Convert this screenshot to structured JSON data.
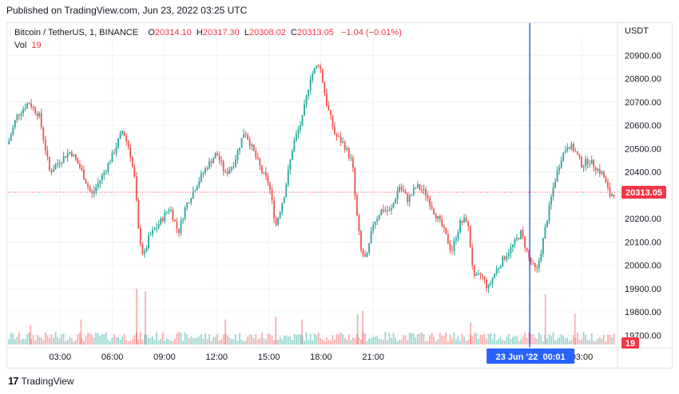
{
  "header": {
    "published": "Published on TradingView.com, Jun 23, 2022 03:25 UTC"
  },
  "legend": {
    "symbol": "Bitcoin / TetherUS, 1, BINANCE",
    "o_label": "O",
    "o_value": "20314.10",
    "h_label": "H",
    "h_value": "20317.30",
    "l_label": "L",
    "l_value": "20308.02",
    "c_label": "C",
    "c_value": "20313.05",
    "change": "−1.04 (−0.01%)",
    "vol_label": "Vol",
    "vol_value": "19"
  },
  "footer": {
    "logo_text": "TradingView"
  },
  "colors": {
    "up": "#26a69a",
    "down": "#ef5350",
    "crosshair": "#2962ff",
    "last_price": "#f23645",
    "grid": "#f0f3fa"
  },
  "chart_data": {
    "type": "candlestick",
    "title": "Bitcoin / TetherUS, 1, BINANCE",
    "ylabel": "USDT",
    "ylim": [
      19660,
      20980
    ],
    "y_ticks": [
      "20900.00",
      "20800.00",
      "20700.00",
      "20600.00",
      "20500.00",
      "20400.00",
      "20300.00",
      "20200.00",
      "20100.00",
      "20000.00",
      "19900.00",
      "19800.00",
      "19700.00"
    ],
    "x_ticks": [
      "03:00",
      "06:00",
      "09:00",
      "12:00",
      "15:00",
      "18:00",
      "21:00",
      "03:00"
    ],
    "crosshair_time_label": "23 Jun '22  00:01",
    "last_price_label": "20313.05",
    "last_volume_label": "19",
    "price_path": [
      [
        0,
        20520
      ],
      [
        0.5,
        20640
      ],
      [
        1.2,
        20700
      ],
      [
        1.8,
        20640
      ],
      [
        2.4,
        20400
      ],
      [
        3.0,
        20450
      ],
      [
        3.6,
        20490
      ],
      [
        4.2,
        20410
      ],
      [
        4.8,
        20300
      ],
      [
        5.4,
        20380
      ],
      [
        6.0,
        20470
      ],
      [
        6.6,
        20580
      ],
      [
        7.0,
        20490
      ],
      [
        7.3,
        20360
      ],
      [
        7.5,
        20150
      ],
      [
        7.8,
        20030
      ],
      [
        8.1,
        20120
      ],
      [
        8.7,
        20180
      ],
      [
        9.3,
        20250
      ],
      [
        9.8,
        20140
      ],
      [
        10.2,
        20250
      ],
      [
        10.8,
        20340
      ],
      [
        11.4,
        20420
      ],
      [
        12.0,
        20480
      ],
      [
        12.5,
        20390
      ],
      [
        13.0,
        20440
      ],
      [
        13.6,
        20580
      ],
      [
        14.1,
        20490
      ],
      [
        14.6,
        20400
      ],
      [
        15.0,
        20350
      ],
      [
        15.4,
        20170
      ],
      [
        15.9,
        20310
      ],
      [
        16.4,
        20520
      ],
      [
        16.9,
        20620
      ],
      [
        17.4,
        20810
      ],
      [
        17.9,
        20870
      ],
      [
        18.3,
        20700
      ],
      [
        18.8,
        20560
      ],
      [
        19.3,
        20520
      ],
      [
        19.8,
        20440
      ],
      [
        20.0,
        20250
      ],
      [
        20.3,
        20060
      ],
      [
        20.6,
        20020
      ],
      [
        21.0,
        20180
      ],
      [
        21.5,
        20240
      ],
      [
        22.0,
        20230
      ],
      [
        22.5,
        20340
      ],
      [
        23.0,
        20280
      ],
      [
        23.5,
        20340
      ],
      [
        24.0,
        20310
      ],
      [
        24.5,
        20230
      ],
      [
        25.0,
        20160
      ],
      [
        25.5,
        20060
      ],
      [
        26.0,
        20180
      ],
      [
        26.4,
        20200
      ],
      [
        26.8,
        19940
      ],
      [
        27.2,
        19960
      ],
      [
        27.6,
        19900
      ],
      [
        28.0,
        19970
      ],
      [
        28.5,
        20030
      ],
      [
        29.0,
        20080
      ],
      [
        29.5,
        20140
      ],
      [
        30.0,
        20020
      ],
      [
        30.4,
        19970
      ],
      [
        30.7,
        20080
      ],
      [
        31.0,
        20200
      ],
      [
        31.4,
        20350
      ],
      [
        31.8,
        20460
      ],
      [
        32.2,
        20520
      ],
      [
        32.6,
        20490
      ],
      [
        33.0,
        20430
      ],
      [
        33.4,
        20450
      ],
      [
        33.8,
        20420
      ],
      [
        34.2,
        20390
      ],
      [
        34.6,
        20300
      ],
      [
        34.9,
        20313
      ]
    ],
    "volume_spikes": [
      {
        "t": 1.3,
        "v": 0.35
      },
      {
        "t": 4.2,
        "v": 0.45
      },
      {
        "t": 7.4,
        "v": 1.0
      },
      {
        "t": 7.9,
        "v": 0.95
      },
      {
        "t": 12.5,
        "v": 0.45
      },
      {
        "t": 15.4,
        "v": 0.5
      },
      {
        "t": 16.9,
        "v": 0.45
      },
      {
        "t": 20.1,
        "v": 0.55
      },
      {
        "t": 20.4,
        "v": 0.6
      },
      {
        "t": 26.6,
        "v": 0.4
      },
      {
        "t": 30.9,
        "v": 0.9
      },
      {
        "t": 32.6,
        "v": 0.55
      }
    ],
    "x_range": [
      0,
      35
    ],
    "x_tick_positions": [
      3,
      6,
      9,
      12,
      15,
      18,
      21,
      33
    ],
    "crosshair_t": 30.0,
    "last_price_value": 20313.05,
    "grid": true
  }
}
